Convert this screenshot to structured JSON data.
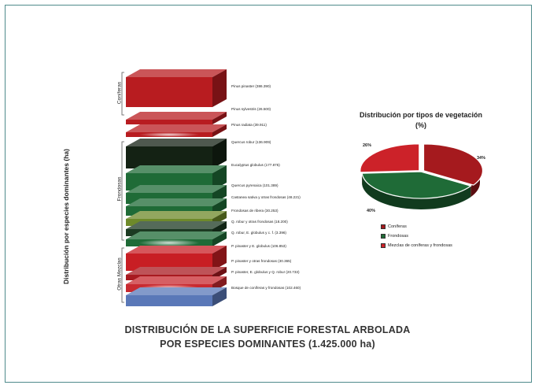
{
  "title_lines": [
    "DISTRIBUCIÓN DE LA SUPERFICIE FORESTAL ARBOLADA",
    "POR ESPECIES DOMINANTES (1.425.000 ha)"
  ],
  "y_axis_title": "Distribución por especies dominantes (ha)",
  "groups": [
    {
      "key": "coniferas",
      "label": "Coníferas"
    },
    {
      "key": "frondosas",
      "label": "Frondosas"
    },
    {
      "key": "mezclas",
      "label": "Otras Mezclas"
    }
  ],
  "chart_data": [
    {
      "type": "bar",
      "title": "DISTRIBUCIÓN DE LA SUPERFICIE FORESTAL ARBOLADA POR ESPECIES DOMINANTES (1.425.000 ha)",
      "ylabel": "Distribución por especies dominantes (ha)",
      "stacked": true,
      "layers": [
        {
          "label": "Pinus pinaster (386.390)",
          "group": "Coníferas",
          "value": 386390,
          "color": "#b81c20"
        },
        {
          "label": "Pinus sylvestris (26.500)",
          "group": "Coníferas",
          "value": 26500,
          "color": "#b81c20"
        },
        {
          "label": "Pinus radiata (39.911)",
          "group": "Coníferas",
          "value": 39911,
          "color": "#b81c20",
          "highlight": "#e09070"
        },
        {
          "label": "Quercus robur (136.909)",
          "group": "Frondosas",
          "value": 136909,
          "color": "#142214"
        },
        {
          "label": "Eucalyptus globulus (177.875)",
          "group": "Frondosas",
          "value": 177875,
          "color": "#1f6b37"
        },
        {
          "label": "Quercus pyrenaica (101.389)",
          "group": "Frondosas",
          "value": 101389,
          "color": "#1f6b37"
        },
        {
          "label": "Castanea sativa y otras frondosas (48.221)",
          "group": "Frondosas",
          "value": 48221,
          "color": "#1f6b37"
        },
        {
          "label": "Frondosas de ribera (30.253)",
          "group": "Frondosas",
          "value": 30253,
          "color": "#6e8a2a"
        },
        {
          "label": "Q. robur y otras frondosas (18.200)",
          "group": "Frondosas",
          "value": 18200,
          "color": "#1c3a22"
        },
        {
          "label": "Q. robur, E. globulus y c. f. (3.396)",
          "group": "Frondosas",
          "value": 3396,
          "color": "#1f6b37",
          "highlight": "#8fc090"
        },
        {
          "label": "P. pinaster y E. globulus (106.853)",
          "group": "Otras Mezclas",
          "value": 106853,
          "color": "#c81e24"
        },
        {
          "label": "P. pinaster y otras frondosas (30.365)",
          "group": "Otras Mezclas",
          "value": 30365,
          "color": "#a81a20"
        },
        {
          "label": "P. pinaster, E. globulus y Q. robur (20.733)",
          "group": "Otras Mezclas",
          "value": 20733,
          "color": "#c82a30",
          "highlight": "#e89a8a"
        },
        {
          "label": "Bosque de coníferas y frondosas (102.460)",
          "group": "Otras Mezclas",
          "value": 102460,
          "color": "#5a78b8"
        }
      ]
    },
    {
      "type": "pie",
      "title": "Distribución por tipos de vegetación (%)",
      "series": [
        {
          "name": "Coníferas",
          "value": 34,
          "color": "#a51a1e"
        },
        {
          "name": "Frondosas",
          "value": 40,
          "color": "#1f6b37"
        },
        {
          "name": "Mezclas de coníferas y frondosas",
          "value": 26,
          "color": "#cc2229"
        }
      ],
      "labels": [
        "34%",
        "40%",
        "26%"
      ]
    }
  ],
  "legend": [
    {
      "name": "Coníferas",
      "color": "#a51a1e"
    },
    {
      "name": "Frondosas",
      "color": "#1f6b37"
    },
    {
      "name": "Mezclas de coníferas y frondosas",
      "color": "#cc2229"
    }
  ],
  "pie_pct_labels": [
    "26%",
    "34%",
    "40%"
  ]
}
